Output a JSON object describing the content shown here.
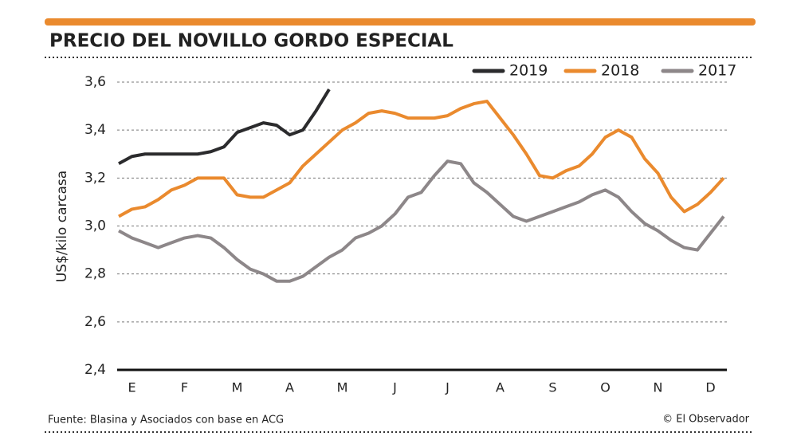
{
  "chart_data": {
    "type": "line",
    "title": "PRECIO DEL NOVILLO GORDO ESPECIAL",
    "y_label": "US$/kilo carcasa",
    "source": "Fuente: Blasina y Asociados con base en ACG",
    "credit": "© El Observador",
    "categories": [
      null,
      "E",
      null,
      null,
      null,
      "F",
      null,
      null,
      null,
      "M",
      null,
      null,
      null,
      "A",
      null,
      null,
      null,
      "M",
      null,
      null,
      null,
      "J",
      null,
      null,
      null,
      "J",
      null,
      null,
      null,
      "A",
      null,
      null,
      null,
      "S",
      null,
      null,
      null,
      "O",
      null,
      null,
      null,
      "N",
      null,
      null,
      null,
      "D",
      null,
      null
    ],
    "series": [
      {
        "name": "2019",
        "color": "#2b2b2d",
        "values": [
          3.26,
          3.29,
          3.3,
          3.3,
          3.3,
          3.3,
          3.3,
          3.31,
          3.33,
          3.39,
          3.41,
          3.43,
          3.42,
          3.38,
          3.4,
          3.48,
          3.57,
          null,
          null,
          null,
          null,
          null,
          null,
          null,
          null,
          null,
          null,
          null,
          null,
          null,
          null,
          null,
          null,
          null,
          null,
          null,
          null,
          null,
          null,
          null,
          null,
          null,
          null,
          null,
          null,
          null,
          null,
          null
        ]
      },
      {
        "name": "2018",
        "color": "#ea8a2e",
        "values": [
          3.04,
          3.07,
          3.08,
          3.11,
          3.15,
          3.17,
          3.2,
          3.2,
          3.2,
          3.13,
          3.12,
          3.12,
          3.15,
          3.18,
          3.25,
          3.3,
          3.35,
          3.4,
          3.43,
          3.47,
          3.48,
          3.47,
          3.45,
          3.45,
          3.45,
          3.46,
          3.49,
          3.51,
          3.52,
          3.45,
          3.38,
          3.3,
          3.21,
          3.2,
          3.23,
          3.25,
          3.3,
          3.37,
          3.4,
          3.37,
          3.28,
          3.22,
          3.12,
          3.06,
          3.09,
          3.14,
          3.2,
          null
        ]
      },
      {
        "name": "2017",
        "color": "#8d8789",
        "values": [
          2.98,
          2.95,
          2.93,
          2.91,
          2.93,
          2.95,
          2.96,
          2.95,
          2.91,
          2.86,
          2.82,
          2.8,
          2.77,
          2.77,
          2.79,
          2.83,
          2.87,
          2.9,
          2.95,
          2.97,
          3.0,
          3.05,
          3.12,
          3.14,
          3.21,
          3.27,
          3.26,
          3.18,
          3.14,
          3.09,
          3.04,
          3.02,
          3.04,
          3.06,
          3.08,
          3.1,
          3.13,
          3.15,
          3.12,
          3.06,
          3.01,
          2.98,
          2.94,
          2.91,
          2.9,
          2.97,
          3.04,
          null
        ]
      }
    ],
    "ylim": [
      2.4,
      3.6
    ],
    "yticks": [
      {
        "value": 2.4,
        "label": "2,4"
      },
      {
        "value": 2.6,
        "label": "2,6"
      },
      {
        "value": 2.8,
        "label": "2,8"
      },
      {
        "value": 3.0,
        "label": "3,0"
      },
      {
        "value": 3.2,
        "label": "3,2"
      },
      {
        "value": 3.4,
        "label": "3,4"
      },
      {
        "value": 3.6,
        "label": "3,6"
      }
    ],
    "grid": true,
    "legend": "top-right"
  }
}
